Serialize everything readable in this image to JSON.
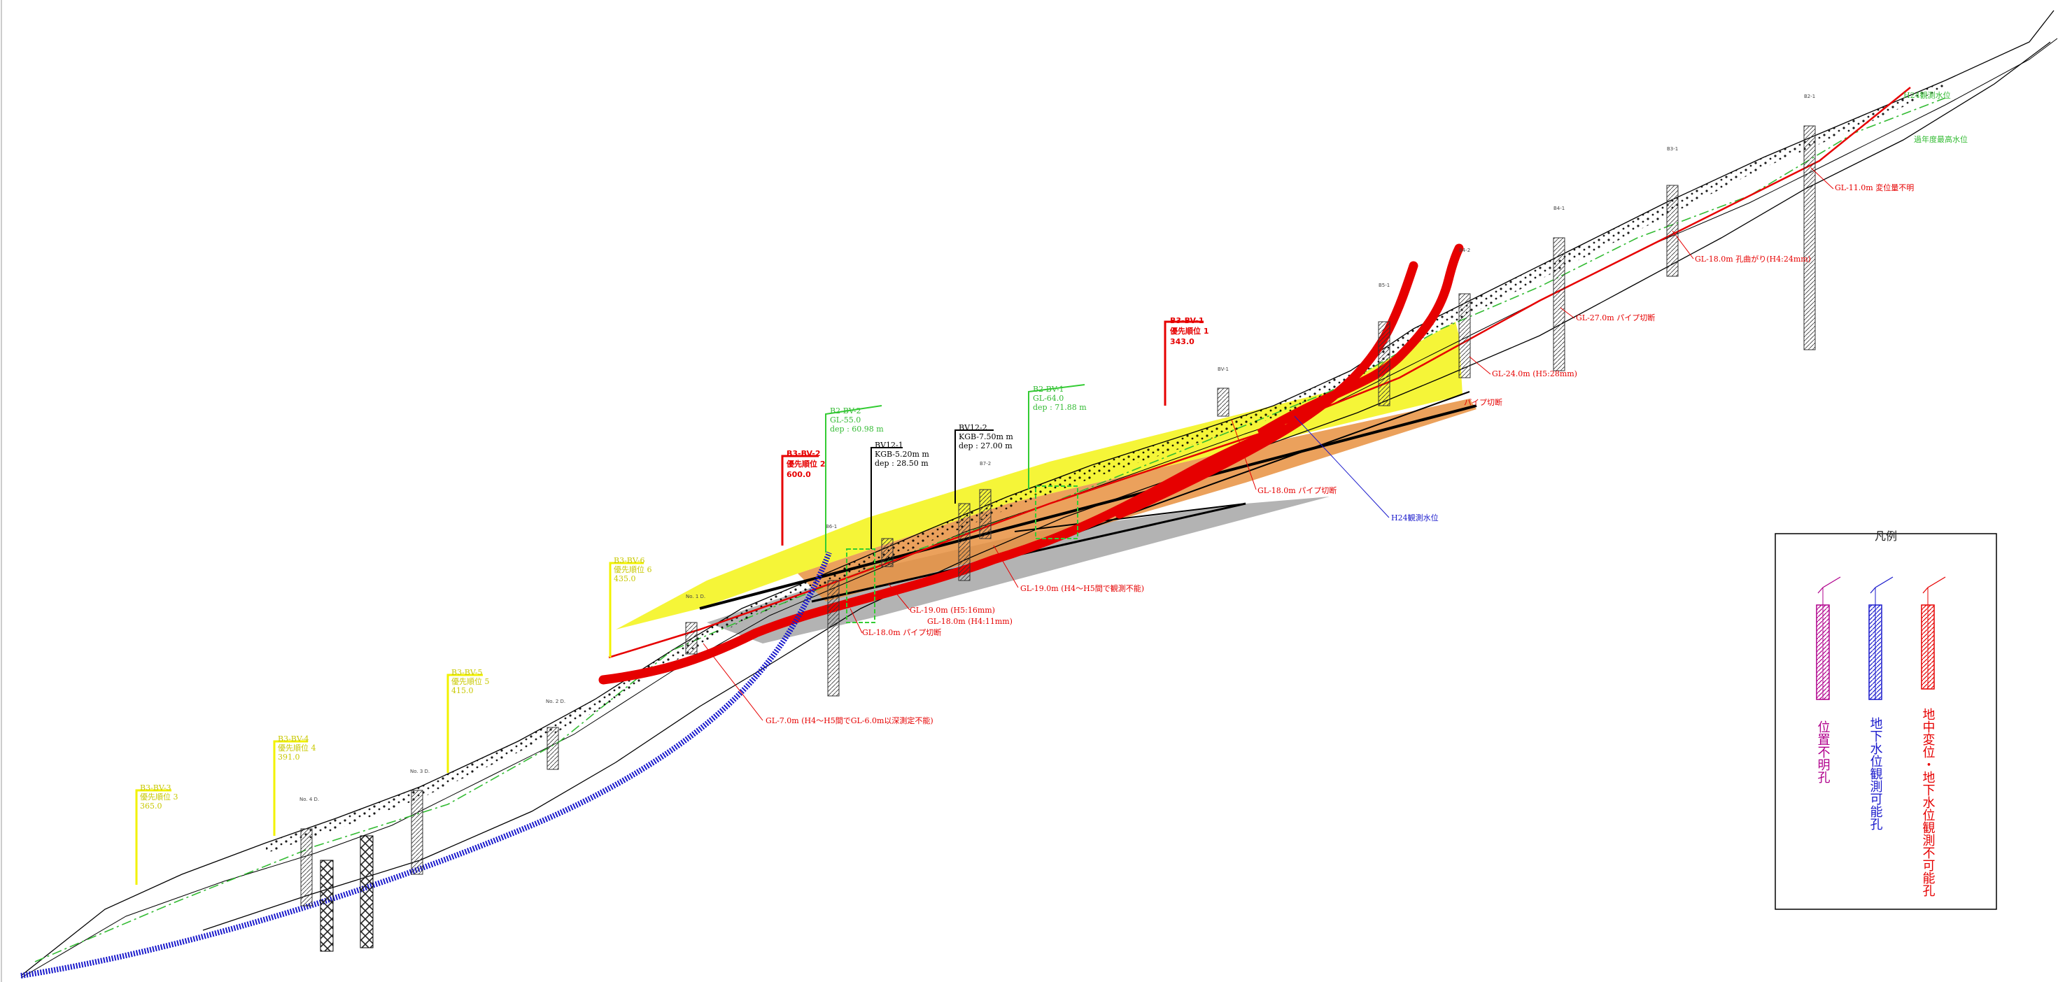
{
  "colors": {
    "red": "#e60000",
    "blue": "#1a1acc",
    "green": "#33cc33",
    "yellow": "#f2f200",
    "magenta": "#b0008c",
    "gray": "#555555"
  },
  "slip_labels": {
    "b3_bv1": {
      "title": "B3-BV-1",
      "sub": "優先順位 1",
      "val": "343.0"
    },
    "b3_bv2": {
      "title": "B3-BV-2",
      "sub": "優先順位 2",
      "val": "600.0"
    },
    "b2_bv1": {
      "title": "B2-BV-1",
      "sub": "GL-64.0",
      "val": "dep : 71.88 m"
    },
    "b2_bv2": {
      "title": "B2-BV-2",
      "sub": "GL-55.0",
      "val": "dep : 60.98 m"
    },
    "bv12_1": {
      "title": "BV12-1",
      "sub": "KGB-5.20m m",
      "val": "dep : 28.50 m"
    },
    "bv12_2": {
      "title": "BV12-2",
      "sub": "KGB-7.50m m",
      "val": "dep : 27.00 m"
    },
    "y1": {
      "title": "B3-BV-3",
      "sub": "優先順位 3",
      "val": "365.0"
    },
    "y2": {
      "title": "B3-BV-4",
      "sub": "優先順位 4",
      "val": "391.0"
    },
    "y3": {
      "title": "B3-BV-5",
      "sub": "優先順位 5",
      "val": "415.0"
    },
    "y4": {
      "title": "B3-BV-6",
      "sub": "優先順位 6",
      "val": "435.0"
    }
  },
  "annotations": {
    "a1": "GL-11.0m 変位量不明",
    "a2": "GL-18.0m 孔曲がり(H4:24mm)",
    "a3": "GL-27.0m パイプ切断",
    "a4": "GL-24.0m (H5:28mm)",
    "a5": "パイプ切断",
    "a6": "GL-18.0m パイプ切断",
    "a7": "H24観測水位",
    "a8": "GL-19.0m (H4～H5間で観測不能)",
    "a9": "GL-19.0m (H5:16mm)",
    "a10": "GL-18.0m (H4:11mm)",
    "a11": "GL-18.0m パイプ切断",
    "a12": "GL-7.0m (H4～H5間でGL-6.0m以深測定不能)",
    "a13": "H24観測水位",
    "a14": "過年度最高水位"
  },
  "legend": {
    "title": "凡例",
    "items": [
      {
        "text": "位置不明孔",
        "color": "#b0008c"
      },
      {
        "text": "地下水位観測可能孔",
        "color": "#1a1acc"
      },
      {
        "text": "地中変位・地下水位観測不可能孔",
        "color": "#e60000"
      }
    ]
  }
}
